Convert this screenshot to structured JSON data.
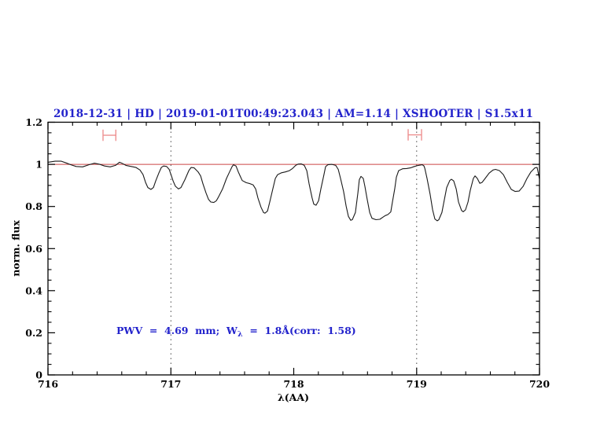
{
  "colors": {
    "title_blue": "#2323cc",
    "annotation_blue": "#2323cc",
    "spectrum": "#1a1a1a",
    "continuum_red": "#cc4646",
    "marker_pink": "#ee9090",
    "axis": "#000000",
    "dotted_guide": "#444444",
    "background": "#ffffff"
  },
  "chart_data": {
    "type": "line",
    "title": "2018-12-31 | HD | 2019-01-01T00:49:23.043 | AM=1.14 | XSHOOTER | S1.5x11",
    "xlabel": "λ(AA)",
    "ylabel": "norm. flux",
    "xlim": [
      716,
      720
    ],
    "ylim": [
      0,
      1.2
    ],
    "x_ticks": [
      716,
      717,
      718,
      719,
      720
    ],
    "x_tick_labels": [
      "716",
      "717",
      "718",
      "719",
      "720"
    ],
    "x_minor_step": 0.2,
    "y_ticks": [
      0,
      0.2,
      0.4,
      0.6,
      0.8,
      1,
      1.2
    ],
    "y_tick_labels": [
      "0",
      "0.2",
      "0.4",
      "0.6",
      "0.8",
      "1",
      "1.2"
    ],
    "y_minor_step": 0.05,
    "grid": "off",
    "legend": "none",
    "dotted_guides_x": [
      717,
      719
    ],
    "continuum_level": 1.0,
    "annotation": {
      "prefix": "PWV  =  4.69  mm;  W",
      "subscript": "λ",
      "suffix": "  =  1.8Å(corr:  1.58)",
      "x": 716.557,
      "y": 0.21
    },
    "range_markers": [
      {
        "x1": 716.448,
        "x2": 716.552,
        "y": 1.138,
        "cap_half": 0.027
      },
      {
        "x1": 718.931,
        "x2": 719.04,
        "y": 1.14,
        "cap_half": 0.027
      }
    ],
    "series": [
      {
        "name": "normalized spectrum",
        "color": "#1a1a1a",
        "points": [
          [
            716.0,
            1.01
          ],
          [
            716.058,
            1.015
          ],
          [
            716.109,
            1.015
          ],
          [
            716.154,
            1.005
          ],
          [
            716.186,
            0.998
          ],
          [
            716.23,
            0.99
          ],
          [
            716.282,
            0.988
          ],
          [
            716.333,
            0.998
          ],
          [
            716.378,
            1.005
          ],
          [
            716.422,
            1.0
          ],
          [
            716.461,
            0.992
          ],
          [
            716.506,
            0.988
          ],
          [
            716.55,
            0.995
          ],
          [
            716.582,
            1.01
          ],
          [
            716.602,
            1.005
          ],
          [
            716.634,
            0.995
          ],
          [
            716.678,
            0.99
          ],
          [
            716.717,
            0.985
          ],
          [
            716.749,
            0.973
          ],
          [
            716.774,
            0.951
          ],
          [
            716.794,
            0.914
          ],
          [
            716.813,
            0.89
          ],
          [
            716.838,
            0.881
          ],
          [
            716.858,
            0.89
          ],
          [
            716.877,
            0.921
          ],
          [
            716.902,
            0.958
          ],
          [
            716.922,
            0.985
          ],
          [
            716.941,
            0.992
          ],
          [
            716.966,
            0.99
          ],
          [
            716.986,
            0.976
          ],
          [
            717.005,
            0.945
          ],
          [
            717.018,
            0.921
          ],
          [
            717.037,
            0.896
          ],
          [
            717.062,
            0.883
          ],
          [
            717.082,
            0.89
          ],
          [
            717.114,
            0.927
          ],
          [
            717.146,
            0.97
          ],
          [
            717.165,
            0.985
          ],
          [
            717.19,
            0.983
          ],
          [
            717.222,
            0.964
          ],
          [
            717.242,
            0.945
          ],
          [
            717.261,
            0.908
          ],
          [
            717.286,
            0.865
          ],
          [
            717.306,
            0.834
          ],
          [
            717.325,
            0.821
          ],
          [
            717.35,
            0.819
          ],
          [
            717.37,
            0.827
          ],
          [
            717.389,
            0.846
          ],
          [
            717.421,
            0.883
          ],
          [
            717.453,
            0.933
          ],
          [
            717.478,
            0.964
          ],
          [
            717.498,
            0.989
          ],
          [
            717.51,
            0.998
          ],
          [
            717.53,
            0.992
          ],
          [
            717.549,
            0.964
          ],
          [
            717.568,
            0.939
          ],
          [
            717.581,
            0.923
          ],
          [
            717.613,
            0.913
          ],
          [
            717.645,
            0.908
          ],
          [
            717.67,
            0.902
          ],
          [
            717.69,
            0.883
          ],
          [
            717.709,
            0.84
          ],
          [
            717.734,
            0.796
          ],
          [
            717.754,
            0.771
          ],
          [
            717.766,
            0.768
          ],
          [
            717.786,
            0.778
          ],
          [
            717.805,
            0.821
          ],
          [
            717.83,
            0.883
          ],
          [
            717.85,
            0.933
          ],
          [
            717.869,
            0.951
          ],
          [
            717.901,
            0.96
          ],
          [
            717.933,
            0.964
          ],
          [
            717.965,
            0.97
          ],
          [
            717.99,
            0.98
          ],
          [
            718.016,
            0.995
          ],
          [
            718.035,
            1.001
          ],
          [
            718.061,
            1.002
          ],
          [
            718.086,
            0.995
          ],
          [
            718.106,
            0.97
          ],
          [
            718.125,
            0.908
          ],
          [
            718.15,
            0.84
          ],
          [
            718.163,
            0.811
          ],
          [
            718.182,
            0.806
          ],
          [
            718.202,
            0.827
          ],
          [
            718.221,
            0.883
          ],
          [
            718.246,
            0.951
          ],
          [
            718.259,
            0.989
          ],
          [
            718.278,
            0.998
          ],
          [
            718.31,
            1.0
          ],
          [
            718.342,
            0.995
          ],
          [
            718.362,
            0.976
          ],
          [
            718.381,
            0.933
          ],
          [
            718.406,
            0.871
          ],
          [
            718.426,
            0.802
          ],
          [
            718.445,
            0.753
          ],
          [
            718.464,
            0.734
          ],
          [
            718.477,
            0.737
          ],
          [
            718.502,
            0.771
          ],
          [
            718.522,
            0.865
          ],
          [
            718.534,
            0.927
          ],
          [
            718.547,
            0.943
          ],
          [
            718.566,
            0.933
          ],
          [
            718.579,
            0.895
          ],
          [
            718.598,
            0.834
          ],
          [
            718.618,
            0.771
          ],
          [
            718.637,
            0.744
          ],
          [
            718.669,
            0.737
          ],
          [
            718.701,
            0.739
          ],
          [
            718.726,
            0.749
          ],
          [
            718.746,
            0.757
          ],
          [
            718.765,
            0.761
          ],
          [
            718.79,
            0.774
          ],
          [
            718.803,
            0.821
          ],
          [
            718.822,
            0.883
          ],
          [
            718.835,
            0.939
          ],
          [
            718.854,
            0.97
          ],
          [
            718.886,
            0.979
          ],
          [
            718.918,
            0.98
          ],
          [
            718.95,
            0.983
          ],
          [
            718.982,
            0.99
          ],
          [
            719.014,
            0.995
          ],
          [
            719.046,
            0.998
          ],
          [
            719.059,
            0.993
          ],
          [
            719.066,
            0.982
          ],
          [
            719.085,
            0.933
          ],
          [
            719.11,
            0.858
          ],
          [
            719.13,
            0.784
          ],
          [
            719.149,
            0.74
          ],
          [
            719.168,
            0.732
          ],
          [
            719.181,
            0.737
          ],
          [
            719.206,
            0.771
          ],
          [
            719.226,
            0.834
          ],
          [
            719.245,
            0.89
          ],
          [
            719.27,
            0.923
          ],
          [
            719.283,
            0.929
          ],
          [
            719.302,
            0.921
          ],
          [
            719.322,
            0.883
          ],
          [
            719.341,
            0.821
          ],
          [
            719.366,
            0.781
          ],
          [
            719.379,
            0.775
          ],
          [
            719.398,
            0.784
          ],
          [
            719.418,
            0.821
          ],
          [
            719.437,
            0.877
          ],
          [
            719.462,
            0.933
          ],
          [
            719.475,
            0.945
          ],
          [
            719.494,
            0.933
          ],
          [
            719.514,
            0.91
          ],
          [
            719.533,
            0.914
          ],
          [
            719.558,
            0.933
          ],
          [
            719.59,
            0.958
          ],
          [
            719.622,
            0.973
          ],
          [
            719.642,
            0.976
          ],
          [
            719.674,
            0.97
          ],
          [
            719.706,
            0.951
          ],
          [
            719.738,
            0.914
          ],
          [
            719.77,
            0.881
          ],
          [
            719.802,
            0.871
          ],
          [
            719.834,
            0.873
          ],
          [
            719.866,
            0.895
          ],
          [
            719.898,
            0.933
          ],
          [
            719.93,
            0.964
          ],
          [
            719.962,
            0.983
          ],
          [
            719.981,
            0.985
          ],
          [
            720.0,
            0.93
          ]
        ]
      }
    ]
  }
}
